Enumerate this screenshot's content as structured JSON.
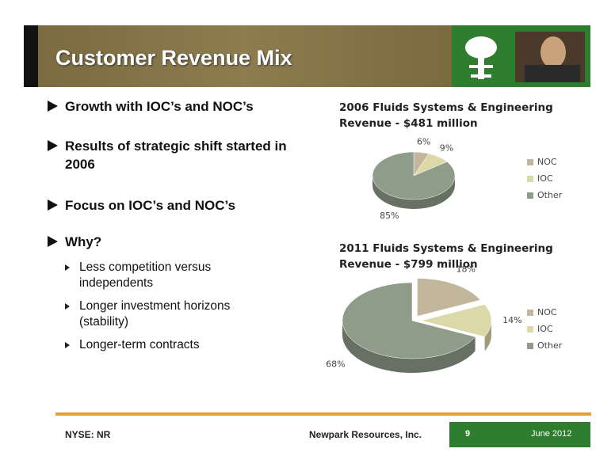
{
  "header": {
    "title": "Customer Revenue Mix"
  },
  "bullets": [
    {
      "text": "Growth with IOC’s and NOC’s"
    },
    {
      "text": "Results of strategic shift started in 2006"
    },
    {
      "text": "Focus on IOC’s and NOC’s"
    },
    {
      "text": "Why?",
      "subitems": [
        "Less competition versus independents",
        "Longer investment horizons (stability)",
        "Longer-term contracts"
      ]
    }
  ],
  "footer": {
    "ticker": "NYSE: NR",
    "company": "Newpark Resources, Inc.",
    "page": 9,
    "date": "June 2012"
  },
  "chart_data": [
    {
      "type": "pie",
      "title": "2006 Fluids Systems & Engineering Revenue - $481 million",
      "categories": [
        "NOC",
        "IOC",
        "Other"
      ],
      "values": [
        6,
        9,
        85
      ],
      "value_labels": [
        "6%",
        "9%",
        "85%"
      ],
      "colors": [
        "#c2b79d",
        "#dcd8a8",
        "#8e9c89"
      ]
    },
    {
      "type": "pie",
      "title": "2011 Fluids Systems & Engineering Revenue - $799 million",
      "categories": [
        "NOC",
        "IOC",
        "Other"
      ],
      "values": [
        18,
        14,
        68
      ],
      "value_labels": [
        "18%",
        "14%",
        "68%"
      ],
      "colors": [
        "#c2b79d",
        "#dcd8a8",
        "#8e9c89"
      ]
    }
  ]
}
